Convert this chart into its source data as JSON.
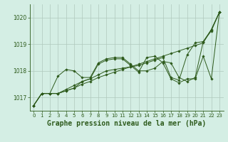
{
  "title": "Graphe pression niveau de la mer (hPa)",
  "background_color": "#d4eee4",
  "grid_color": "#b0c8bc",
  "line_color": "#2d5a1b",
  "ylim": [
    1016.5,
    1020.5
  ],
  "xlim": [
    -0.5,
    23.5
  ],
  "yticks": [
    1017,
    1018,
    1019,
    1020
  ],
  "xticks": [
    0,
    1,
    2,
    3,
    4,
    5,
    6,
    7,
    8,
    9,
    10,
    11,
    12,
    13,
    14,
    15,
    16,
    17,
    18,
    19,
    20,
    21,
    22,
    23
  ],
  "series": [
    [
      1016.7,
      1017.15,
      1017.15,
      1017.15,
      1017.25,
      1017.35,
      1017.5,
      1017.6,
      1017.75,
      1017.85,
      1017.95,
      1018.05,
      1018.15,
      1018.25,
      1018.35,
      1018.45,
      1018.55,
      1018.65,
      1018.75,
      1018.85,
      1018.95,
      1019.05,
      1019.55,
      1020.2
    ],
    [
      1016.7,
      1017.15,
      1017.15,
      1017.8,
      1018.05,
      1018.0,
      1017.75,
      1017.75,
      1018.3,
      1018.45,
      1018.5,
      1018.5,
      1018.25,
      1018.0,
      1018.0,
      1018.1,
      1018.35,
      1018.3,
      1017.75,
      1017.6,
      1017.75,
      1019.1,
      1019.55,
      1020.2
    ],
    [
      1016.7,
      1017.15,
      1017.15,
      1017.15,
      1017.25,
      1017.35,
      1017.6,
      1017.7,
      1018.25,
      1018.4,
      1018.45,
      1018.45,
      1018.2,
      1017.95,
      1018.5,
      1018.55,
      1018.3,
      1017.7,
      1017.55,
      1017.7,
      1017.7,
      1018.55,
      1017.7,
      1020.2
    ],
    [
      1016.7,
      1017.15,
      1017.15,
      1017.15,
      1017.3,
      1017.45,
      1017.6,
      1017.7,
      1017.85,
      1018.0,
      1018.05,
      1018.1,
      1018.15,
      1018.2,
      1018.3,
      1018.4,
      1018.5,
      1017.75,
      1017.65,
      1018.6,
      1019.05,
      1019.1,
      1019.5,
      1020.2
    ]
  ]
}
